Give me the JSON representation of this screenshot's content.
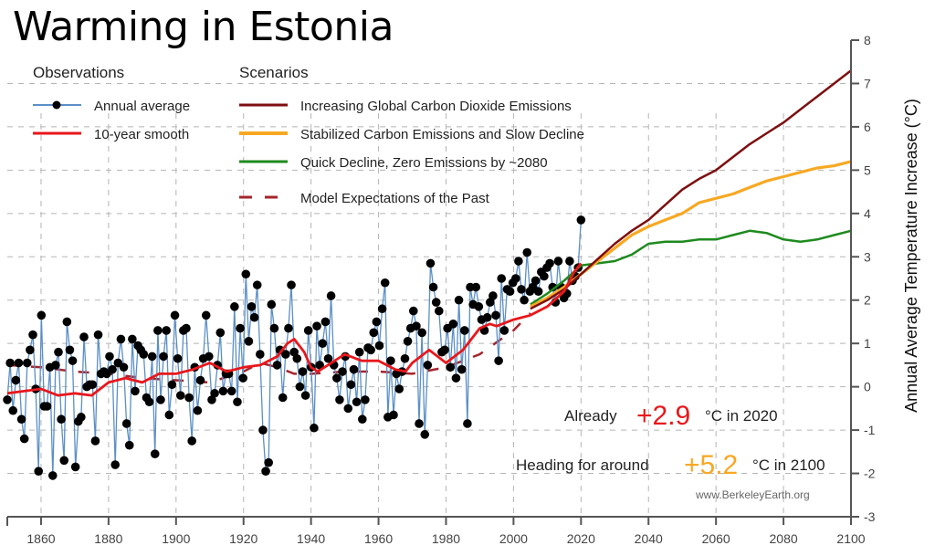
{
  "title": "Warming in Estonia",
  "legend": {
    "observations_heading": "Observations",
    "scenarios_heading": "Scenarios",
    "items": [
      {
        "label": "Annual average",
        "color": "#5b8fc7",
        "style": "line-marker"
      },
      {
        "label": "10-year smooth",
        "color": "#e8171b",
        "style": "line"
      },
      {
        "label": "Increasing Global Carbon Dioxide Emissions",
        "color": "#7d0f10",
        "style": "line"
      },
      {
        "label": "Stabilized Carbon Emissions and Slow Decline",
        "color": "#f7a823",
        "style": "line"
      },
      {
        "label": "Quick Decline, Zero Emissions by ~2080",
        "color": "#1e8a1e",
        "style": "line"
      },
      {
        "label": "Model Expectations of the Past",
        "color": "#a5252b",
        "style": "dashed"
      }
    ]
  },
  "annotations": {
    "already_prefix": "Already",
    "already_value": "+2.9",
    "already_suffix": "°C in 2020",
    "already_color": "#e8171b",
    "heading_prefix": "Heading for around",
    "heading_value": "+5.2",
    "heading_suffix": "°C in 2100",
    "heading_color": "#f7a823",
    "source": "www.BerkeleyEarth.org"
  },
  "chart_data": {
    "type": "line",
    "title": "Warming in Estonia",
    "xlabel": "",
    "ylabel": "Annual Average Temperature Increase (°C)",
    "xlim": [
      1850,
      2100
    ],
    "ylim": [
      -3,
      8
    ],
    "xticks": [
      1860,
      1880,
      1900,
      1920,
      1940,
      1960,
      1980,
      2000,
      2020,
      2040,
      2060,
      2080,
      2100
    ],
    "yticks": [
      -3,
      -2,
      -1,
      0,
      1,
      2,
      3,
      4,
      5,
      6,
      7,
      8
    ],
    "grid": true,
    "y_axis_side": "right",
    "legend_position": "top-left",
    "series": [
      {
        "name": "Annual average",
        "x_start": 1850,
        "values": [
          -0.3,
          0.55,
          -0.55,
          0.15,
          0.55,
          -0.75,
          -1.2,
          0.55,
          0.85,
          1.2,
          -0.05,
          -1.95,
          1.65,
          -0.45,
          -0.45,
          0.45,
          -2.05,
          0.5,
          0.8,
          -0.75,
          -1.7,
          1.5,
          0.85,
          0.6,
          -1.85,
          -0.8,
          -0.7,
          1.15,
          0.0,
          0.05,
          0.05,
          -1.25,
          1.2,
          0.3,
          0.35,
          0.3,
          0.7,
          0.4,
          -1.8,
          0.55,
          1.1,
          0.45,
          -0.85,
          -1.35,
          1.1,
          -0.1,
          0.95,
          0.85,
          0.75,
          -0.25,
          -0.35,
          0.7,
          -1.55,
          1.3,
          -0.3,
          0.7,
          1.3,
          -0.65,
          0.05,
          1.65,
          0.65,
          -0.2,
          1.3,
          1.35,
          -0.25,
          -1.25,
          0.45,
          -0.55,
          0.15,
          0.65,
          1.65,
          0.7,
          -0.3,
          -0.15,
          0.5,
          1.25,
          -0.1,
          0.3,
          0.3,
          -0.1,
          1.85,
          -0.35,
          1.35,
          0.2,
          2.6,
          1.05,
          1.85,
          1.6,
          2.35,
          0.75,
          -1.0,
          -1.95,
          -1.75,
          1.9,
          1.35,
          0.5,
          0.85,
          -0.25,
          0.75,
          1.35,
          2.35,
          0.8,
          0.65,
          0.0,
          0.35,
          -0.2,
          1.3,
          0.45,
          -0.95,
          1.4,
          0.5,
          1.0,
          1.5,
          0.65,
          2.1,
          0.5,
          0.2,
          -0.3,
          0.35,
          0.7,
          -0.5,
          0.05,
          0.4,
          -0.35,
          0.8,
          -0.75,
          -0.3,
          0.9,
          0.85,
          1.25,
          1.5,
          0.95,
          1.8,
          2.4,
          -0.7,
          0.6,
          -0.65,
          0.3,
          -0.05,
          0.35,
          0.65,
          1.05,
          1.35,
          1.75,
          1.4,
          -0.85,
          1.25,
          -1.1,
          0.5,
          2.85,
          2.3,
          1.95,
          1.75,
          0.8,
          0.85,
          1.35,
          0.45,
          1.45,
          0.2,
          2.0,
          0.4,
          1.3,
          -0.85,
          2.3,
          1.9,
          2.3,
          1.85,
          1.55,
          1.3,
          1.6,
          1.95,
          2.1,
          1.65,
          0.6,
          2.5,
          1.3,
          2.25,
          2.2,
          2.4,
          2.5,
          2.9,
          2.25,
          2.0,
          3.1,
          2.2,
          2.3,
          2.45,
          2.2,
          2.65,
          2.55,
          2.75,
          2.85,
          2.3,
          1.95,
          2.9,
          2.3,
          2.05,
          2.15,
          2.9,
          2.45,
          2.55,
          2.75,
          3.85
        ]
      },
      {
        "name": "10-year smooth",
        "x": [
          1850,
          1855,
          1860,
          1865,
          1870,
          1875,
          1880,
          1885,
          1890,
          1895,
          1900,
          1905,
          1910,
          1915,
          1920,
          1925,
          1930,
          1933,
          1935,
          1938,
          1940,
          1942,
          1945,
          1950,
          1955,
          1960,
          1965,
          1968,
          1970,
          1975,
          1980,
          1985,
          1990,
          1993,
          1995,
          2000,
          2005,
          2010,
          2015,
          2018,
          2020
        ],
        "values": [
          -0.15,
          -0.1,
          -0.05,
          -0.2,
          -0.15,
          -0.2,
          0.1,
          0.2,
          0.1,
          0.3,
          0.3,
          0.4,
          0.55,
          0.35,
          0.45,
          0.5,
          0.7,
          1.0,
          1.1,
          0.8,
          0.45,
          0.35,
          0.5,
          0.75,
          0.6,
          0.6,
          0.4,
          0.35,
          0.55,
          0.85,
          0.55,
          0.85,
          1.35,
          1.45,
          1.4,
          1.55,
          1.65,
          1.85,
          2.2,
          2.65,
          2.85
        ]
      },
      {
        "name": "Model Expectations of the Past",
        "x": [
          1850,
          1860,
          1870,
          1880,
          1890,
          1900,
          1910,
          1920,
          1925,
          1930,
          1935,
          1940,
          1950,
          1960,
          1970,
          1980,
          1990,
          2000,
          2005
        ],
        "values": [
          0.5,
          0.45,
          0.35,
          0.3,
          0.2,
          0.15,
          0.1,
          0.35,
          0.55,
          0.45,
          0.3,
          0.3,
          0.35,
          0.35,
          0.3,
          0.45,
          0.75,
          1.3,
          1.7
        ]
      },
      {
        "name": "Increasing Global Carbon Dioxide Emissions",
        "x": [
          2005,
          2010,
          2015,
          2020,
          2025,
          2030,
          2035,
          2040,
          2045,
          2050,
          2055,
          2060,
          2065,
          2070,
          2075,
          2080,
          2085,
          2090,
          2095,
          2100
        ],
        "values": [
          1.8,
          2.0,
          2.25,
          2.6,
          2.95,
          3.3,
          3.6,
          3.85,
          4.2,
          4.55,
          4.8,
          5.0,
          5.3,
          5.6,
          5.85,
          6.1,
          6.4,
          6.7,
          7.0,
          7.3
        ]
      },
      {
        "name": "Stabilized Carbon Emissions and Slow Decline",
        "x": [
          2005,
          2010,
          2015,
          2020,
          2025,
          2030,
          2035,
          2040,
          2045,
          2050,
          2055,
          2060,
          2065,
          2070,
          2075,
          2080,
          2085,
          2090,
          2095,
          2100
        ],
        "values": [
          1.85,
          2.05,
          2.3,
          2.6,
          2.9,
          3.2,
          3.5,
          3.7,
          3.85,
          4.0,
          4.25,
          4.35,
          4.45,
          4.6,
          4.75,
          4.85,
          4.95,
          5.05,
          5.1,
          5.2
        ]
      },
      {
        "name": "Quick Decline, Zero Emissions by ~2080",
        "x": [
          2005,
          2010,
          2015,
          2020,
          2025,
          2030,
          2035,
          2040,
          2045,
          2050,
          2055,
          2060,
          2065,
          2070,
          2075,
          2080,
          2085,
          2090,
          2095,
          2100
        ],
        "values": [
          1.9,
          2.15,
          2.45,
          2.8,
          2.85,
          2.9,
          3.05,
          3.3,
          3.35,
          3.35,
          3.4,
          3.4,
          3.5,
          3.6,
          3.55,
          3.4,
          3.35,
          3.4,
          3.5,
          3.6
        ]
      }
    ]
  }
}
